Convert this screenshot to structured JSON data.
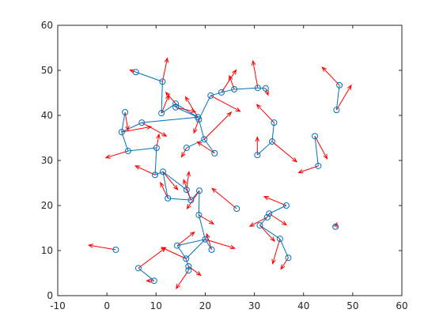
{
  "chart_data": {
    "type": "quiver-graph",
    "xlim": [
      -10,
      60
    ],
    "ylim": [
      0,
      60
    ],
    "xticks": [
      -10,
      0,
      10,
      20,
      30,
      40,
      50,
      60
    ],
    "yticks": [
      0,
      10,
      20,
      30,
      40,
      50,
      60
    ],
    "node_color": "#0072bd",
    "arrow_color": "#ff0000",
    "x": [
      5.9,
      11.3,
      3.7,
      3.0,
      4.3,
      7.1,
      11.1,
      14.0,
      14.0,
      18.5,
      18.7,
      21.1,
      23.3,
      25.9,
      30.7,
      32.3,
      19.8,
      16.2,
      21.9,
      10.1,
      9.8,
      11.4,
      12.4,
      16.2,
      17.1,
      18.8,
      18.7,
      26.4,
      20.0,
      21.3,
      14.3,
      16.1,
      16.6,
      16.6,
      6.4,
      9.6,
      1.8,
      30.6,
      33.6,
      34.0,
      42.3,
      43.0,
      46.7,
      47.3,
      46.5,
      36.5,
      33.0,
      32.6,
      31.1,
      35.2,
      36.9
    ],
    "y": [
      49.6,
      47.5,
      40.7,
      36.3,
      32.1,
      38.4,
      40.5,
      42.6,
      41.8,
      39.6,
      39.1,
      44.4,
      45.1,
      45.8,
      46.1,
      46.0,
      34.7,
      32.8,
      31.6,
      32.8,
      26.8,
      27.5,
      21.6,
      23.5,
      21.2,
      23.3,
      17.9,
      19.3,
      12.5,
      10.2,
      11.1,
      8.2,
      6.5,
      5.6,
      6.1,
      3.3,
      10.2,
      31.2,
      34.2,
      38.4,
      35.4,
      28.8,
      41.2,
      46.7,
      15.3,
      20.0,
      18.2,
      17.4,
      15.6,
      12.6,
      8.4
    ],
    "u": [
      -1.2,
      1.0,
      0.6,
      6.0,
      -4.5,
      5.0,
      1.5,
      -2.0,
      4.0,
      -2.5,
      -1.0,
      6.0,
      3.0,
      -1.0,
      -1.0,
      0.5,
      5.5,
      -1.0,
      -3.5,
      0.5,
      -4.0,
      3.0,
      -1.5,
      0.5,
      -1.5,
      -2.5,
      3.0,
      -5.0,
      6.0,
      -1.0,
      3.5,
      -5.0,
      2.5,
      -2.5,
      5.5,
      -1.5,
      -5.5,
      0.0,
      5.0,
      -3.5,
      2.5,
      -4.0,
      3.0,
      -3.5,
      0.3,
      -4.5,
      3.5,
      -3.5,
      3.0,
      -1.5,
      -1.5
    ],
    "v": [
      0.5,
      5.2,
      -4.0,
      1.2,
      -1.5,
      -3.0,
      4.0,
      2.5,
      -1.0,
      4.5,
      -3.0,
      -3.5,
      5.0,
      3.0,
      6.0,
      -1.5,
      6.0,
      -2.0,
      2.5,
      3.0,
      2.0,
      -4.0,
      3.5,
      4.0,
      4.5,
      -4.0,
      -2.0,
      4.5,
      -2.0,
      3.5,
      3.0,
      2.5,
      -2.0,
      -4.0,
      4.5,
      0.0,
      1.0,
      4.0,
      -4.5,
      4.0,
      -5.0,
      -1.5,
      5.5,
      4.0,
      0.8,
      2.0,
      -2.5,
      -2.0,
      -3.5,
      -5.5,
      -2.5
    ],
    "edges": [
      [
        0,
        1
      ],
      [
        1,
        6
      ],
      [
        6,
        7
      ],
      [
        7,
        9
      ],
      [
        9,
        10
      ],
      [
        10,
        16
      ],
      [
        16,
        17
      ],
      [
        16,
        18
      ],
      [
        10,
        11
      ],
      [
        11,
        12
      ],
      [
        12,
        13
      ],
      [
        13,
        14
      ],
      [
        14,
        15
      ],
      [
        8,
        9
      ],
      [
        7,
        8
      ],
      [
        2,
        3
      ],
      [
        3,
        4
      ],
      [
        3,
        5
      ],
      [
        5,
        9
      ],
      [
        4,
        19
      ],
      [
        19,
        20
      ],
      [
        20,
        21
      ],
      [
        21,
        23
      ],
      [
        21,
        22
      ],
      [
        22,
        24
      ],
      [
        23,
        24
      ],
      [
        24,
        25
      ],
      [
        25,
        26
      ],
      [
        26,
        28
      ],
      [
        28,
        29
      ],
      [
        28,
        30
      ],
      [
        30,
        31
      ],
      [
        31,
        32
      ],
      [
        32,
        33
      ],
      [
        28,
        31
      ],
      [
        34,
        35
      ],
      [
        38,
        37
      ],
      [
        38,
        39
      ],
      [
        40,
        41
      ],
      [
        42,
        43
      ],
      [
        45,
        46
      ],
      [
        46,
        47
      ],
      [
        47,
        48
      ],
      [
        48,
        49
      ],
      [
        49,
        50
      ]
    ]
  }
}
